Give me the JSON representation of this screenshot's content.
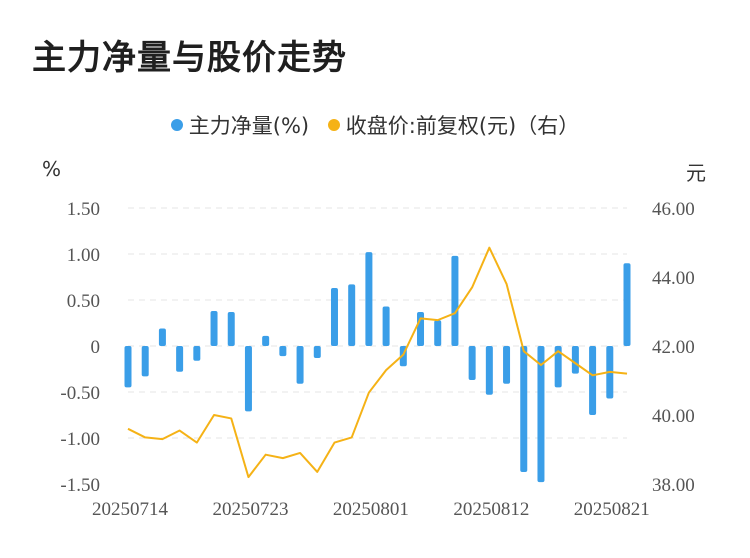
{
  "title": "主力净量与股价走势",
  "legend": {
    "bar_label": "主力净量(%)",
    "line_label": "收盘价:前复权(元)（右）"
  },
  "units": {
    "left": "%",
    "right": "元"
  },
  "colors": {
    "bar": "#3a9ee8",
    "line": "#f5b216",
    "grid": "#e6e6e6"
  },
  "chart_data": {
    "type": "bar+line",
    "title": "主力净量与股价走势",
    "x_tick_labels": [
      "20250714",
      "20250723",
      "20250801",
      "20250812",
      "20250821"
    ],
    "x_tick_indices": [
      0,
      7,
      14,
      21,
      28
    ],
    "y_left": {
      "label": "%",
      "ylim": [
        -1.5,
        1.5
      ],
      "ticks": [
        -1.5,
        -1.0,
        -0.5,
        0,
        0.5,
        1.0,
        1.5
      ],
      "tick_labels": [
        "-1.50",
        "-1.00",
        "-0.50",
        "0",
        "0.50",
        "1.00",
        "1.50"
      ]
    },
    "y_right": {
      "label": "元",
      "ylim": [
        38,
        46
      ],
      "ticks": [
        38,
        40,
        42,
        44,
        46
      ],
      "tick_labels": [
        "38.00",
        "40.00",
        "42.00",
        "44.00",
        "46.00"
      ]
    },
    "grid": true,
    "series": [
      {
        "name": "主力净量(%)",
        "type": "bar",
        "axis": "left",
        "values": [
          -0.45,
          -0.33,
          0.19,
          -0.28,
          -0.16,
          0.38,
          0.37,
          -0.71,
          0.11,
          -0.11,
          -0.41,
          -0.13,
          0.63,
          0.67,
          1.02,
          0.43,
          -0.22,
          0.37,
          0.28,
          0.98,
          -0.37,
          -0.53,
          -0.41,
          -1.37,
          -1.48,
          -0.45,
          -0.3,
          -0.75,
          -0.57,
          0.9
        ]
      },
      {
        "name": "收盘价:前复权(元)（右）",
        "type": "line",
        "axis": "right",
        "values": [
          39.6,
          39.35,
          39.3,
          39.55,
          39.2,
          40.0,
          39.9,
          38.2,
          38.85,
          38.75,
          38.9,
          38.35,
          39.2,
          39.35,
          40.65,
          41.3,
          41.75,
          42.8,
          42.75,
          42.95,
          43.7,
          44.85,
          43.8,
          41.85,
          41.45,
          41.85,
          41.5,
          41.15,
          41.25,
          41.2
        ]
      }
    ]
  }
}
